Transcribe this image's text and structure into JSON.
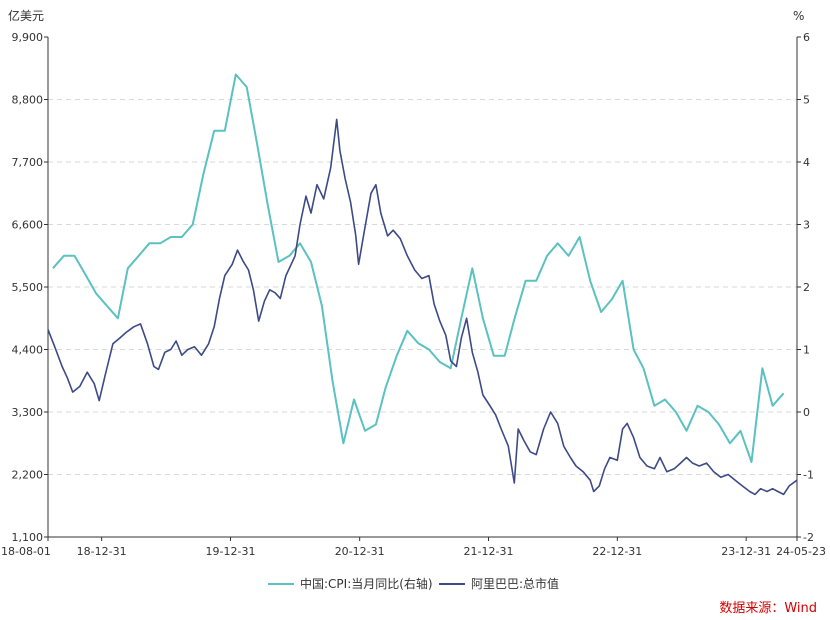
{
  "chart_data": {
    "type": "line",
    "left_axis": {
      "unit_label": "亿美元",
      "ticks": [
        "9,900",
        "8,800",
        "7,700",
        "6,600",
        "5,500",
        "4,400",
        "3,300",
        "2,200",
        "1,100"
      ],
      "range": [
        1100,
        9900
      ]
    },
    "right_axis": {
      "unit_label": "%",
      "ticks": [
        "6",
        "5",
        "4",
        "3",
        "2",
        "1",
        "0",
        "-1",
        "-2"
      ],
      "range": [
        -2,
        6
      ]
    },
    "x_axis": {
      "ticks": [
        "18-08-01",
        "18-12-31",
        "19-12-31",
        "20-12-31",
        "21-12-31",
        "22-12-31",
        "23-12-31",
        "24-05-23"
      ],
      "range": [
        "2018-08-01",
        "2024-05-23"
      ]
    },
    "grid": "dashed horizontal",
    "legend_position": "bottom",
    "series": [
      {
        "name": "中国:CPI:当月同比(右轴)",
        "axis": "right",
        "color": "#5bc1c1",
        "points": [
          [
            "2018-08",
            2.3
          ],
          [
            "2018-09",
            2.5
          ],
          [
            "2018-10",
            2.5
          ],
          [
            "2018-11",
            2.2
          ],
          [
            "2018-12",
            1.9
          ],
          [
            "2019-01",
            1.7
          ],
          [
            "2019-02",
            1.5
          ],
          [
            "2019-03",
            2.3
          ],
          [
            "2019-04",
            2.5
          ],
          [
            "2019-05",
            2.7
          ],
          [
            "2019-06",
            2.7
          ],
          [
            "2019-07",
            2.8
          ],
          [
            "2019-08",
            2.8
          ],
          [
            "2019-09",
            3.0
          ],
          [
            "2019-10",
            3.8
          ],
          [
            "2019-11",
            4.5
          ],
          [
            "2019-12",
            4.5
          ],
          [
            "2020-01",
            5.4
          ],
          [
            "2020-02",
            5.2
          ],
          [
            "2020-03",
            4.3
          ],
          [
            "2020-04",
            3.3
          ],
          [
            "2020-05",
            2.4
          ],
          [
            "2020-06",
            2.5
          ],
          [
            "2020-07",
            2.7
          ],
          [
            "2020-08",
            2.4
          ],
          [
            "2020-09",
            1.7
          ],
          [
            "2020-10",
            0.5
          ],
          [
            "2020-11",
            -0.5
          ],
          [
            "2020-12",
            0.2
          ],
          [
            "2021-01",
            -0.3
          ],
          [
            "2021-02",
            -0.2
          ],
          [
            "2021-03",
            0.4
          ],
          [
            "2021-04",
            0.9
          ],
          [
            "2021-05",
            1.3
          ],
          [
            "2021-06",
            1.1
          ],
          [
            "2021-07",
            1.0
          ],
          [
            "2021-08",
            0.8
          ],
          [
            "2021-09",
            0.7
          ],
          [
            "2021-10",
            1.5
          ],
          [
            "2021-11",
            2.3
          ],
          [
            "2021-12",
            1.5
          ],
          [
            "2022-01",
            0.9
          ],
          [
            "2022-02",
            0.9
          ],
          [
            "2022-03",
            1.5
          ],
          [
            "2022-04",
            2.1
          ],
          [
            "2022-05",
            2.1
          ],
          [
            "2022-06",
            2.5
          ],
          [
            "2022-07",
            2.7
          ],
          [
            "2022-08",
            2.5
          ],
          [
            "2022-09",
            2.8
          ],
          [
            "2022-10",
            2.1
          ],
          [
            "2022-11",
            1.6
          ],
          [
            "2022-12",
            1.8
          ],
          [
            "2023-01",
            2.1
          ],
          [
            "2023-02",
            1.0
          ],
          [
            "2023-03",
            0.7
          ],
          [
            "2023-04",
            0.1
          ],
          [
            "2023-05",
            0.2
          ],
          [
            "2023-06",
            0.0
          ],
          [
            "2023-07",
            -0.3
          ],
          [
            "2023-08",
            0.1
          ],
          [
            "2023-09",
            0.0
          ],
          [
            "2023-10",
            -0.2
          ],
          [
            "2023-11",
            -0.5
          ],
          [
            "2023-12",
            -0.3
          ],
          [
            "2024-01",
            -0.8
          ],
          [
            "2024-02",
            0.7
          ],
          [
            "2024-03",
            0.1
          ],
          [
            "2024-04",
            0.3
          ]
        ]
      },
      {
        "name": "阿里巴巴:总市值",
        "axis": "left",
        "color": "#3d4a86",
        "points": [
          [
            "2018-08-01",
            4750
          ],
          [
            "2018-08-20",
            4450
          ],
          [
            "2018-09-10",
            4100
          ],
          [
            "2018-09-25",
            3900
          ],
          [
            "2018-10-10",
            3650
          ],
          [
            "2018-10-30",
            3750
          ],
          [
            "2018-11-20",
            4000
          ],
          [
            "2018-12-10",
            3800
          ],
          [
            "2018-12-24",
            3500
          ],
          [
            "2019-01-10",
            3950
          ],
          [
            "2019-02-01",
            4500
          ],
          [
            "2019-02-20",
            4600
          ],
          [
            "2019-03-10",
            4700
          ],
          [
            "2019-04-01",
            4800
          ],
          [
            "2019-04-20",
            4850
          ],
          [
            "2019-05-10",
            4500
          ],
          [
            "2019-05-28",
            4100
          ],
          [
            "2019-06-10",
            4050
          ],
          [
            "2019-06-28",
            4350
          ],
          [
            "2019-07-15",
            4400
          ],
          [
            "2019-07-30",
            4550
          ],
          [
            "2019-08-15",
            4300
          ],
          [
            "2019-09-01",
            4400
          ],
          [
            "2019-09-20",
            4450
          ],
          [
            "2019-10-10",
            4300
          ],
          [
            "2019-10-30",
            4500
          ],
          [
            "2019-11-15",
            4800
          ],
          [
            "2019-11-30",
            5300
          ],
          [
            "2019-12-15",
            5700
          ],
          [
            "2020-01-05",
            5900
          ],
          [
            "2020-01-20",
            6150
          ],
          [
            "2020-02-05",
            5950
          ],
          [
            "2020-02-20",
            5800
          ],
          [
            "2020-03-05",
            5450
          ],
          [
            "2020-03-20",
            4900
          ],
          [
            "2020-04-05",
            5250
          ],
          [
            "2020-04-20",
            5450
          ],
          [
            "2020-05-05",
            5400
          ],
          [
            "2020-05-20",
            5300
          ],
          [
            "2020-06-05",
            5700
          ],
          [
            "2020-06-20",
            5900
          ],
          [
            "2020-07-01",
            6050
          ],
          [
            "2020-07-15",
            6600
          ],
          [
            "2020-08-01",
            7100
          ],
          [
            "2020-08-15",
            6800
          ],
          [
            "2020-09-01",
            7300
          ],
          [
            "2020-09-20",
            7050
          ],
          [
            "2020-10-10",
            7600
          ],
          [
            "2020-10-27",
            8450
          ],
          [
            "2020-11-05",
            7900
          ],
          [
            "2020-11-20",
            7400
          ],
          [
            "2020-12-05",
            7000
          ],
          [
            "2020-12-20",
            6400
          ],
          [
            "2020-12-28",
            5900
          ],
          [
            "2021-01-15",
            6550
          ],
          [
            "2021-02-01",
            7150
          ],
          [
            "2021-02-15",
            7300
          ],
          [
            "2021-03-01",
            6800
          ],
          [
            "2021-03-20",
            6400
          ],
          [
            "2021-04-05",
            6500
          ],
          [
            "2021-04-25",
            6350
          ],
          [
            "2021-05-15",
            6050
          ],
          [
            "2021-06-05",
            5800
          ],
          [
            "2021-06-25",
            5650
          ],
          [
            "2021-07-15",
            5700
          ],
          [
            "2021-07-30",
            5200
          ],
          [
            "2021-08-15",
            4900
          ],
          [
            "2021-09-01",
            4650
          ],
          [
            "2021-09-15",
            4200
          ],
          [
            "2021-10-01",
            4100
          ],
          [
            "2021-10-15",
            4600
          ],
          [
            "2021-10-30",
            4950
          ],
          [
            "2021-11-15",
            4350
          ],
          [
            "2021-12-01",
            4000
          ],
          [
            "2021-12-15",
            3600
          ],
          [
            "2021-12-31",
            3450
          ],
          [
            "2022-01-20",
            3250
          ],
          [
            "2022-02-05",
            3000
          ],
          [
            "2022-02-25",
            2700
          ],
          [
            "2022-03-14",
            2050
          ],
          [
            "2022-03-25",
            3000
          ],
          [
            "2022-04-10",
            2800
          ],
          [
            "2022-04-28",
            2600
          ],
          [
            "2022-05-15",
            2550
          ],
          [
            "2022-06-05",
            3000
          ],
          [
            "2022-06-25",
            3300
          ],
          [
            "2022-07-15",
            3100
          ],
          [
            "2022-08-01",
            2700
          ],
          [
            "2022-08-20",
            2500
          ],
          [
            "2022-09-05",
            2350
          ],
          [
            "2022-09-25",
            2250
          ],
          [
            "2022-10-15",
            2100
          ],
          [
            "2022-10-25",
            1900
          ],
          [
            "2022-11-10",
            2000
          ],
          [
            "2022-11-25",
            2300
          ],
          [
            "2022-12-10",
            2500
          ],
          [
            "2022-12-31",
            2450
          ],
          [
            "2023-01-15",
            3000
          ],
          [
            "2023-01-28",
            3100
          ],
          [
            "2023-02-15",
            2850
          ],
          [
            "2023-03-05",
            2500
          ],
          [
            "2023-03-25",
            2350
          ],
          [
            "2023-04-15",
            2300
          ],
          [
            "2023-05-01",
            2500
          ],
          [
            "2023-05-20",
            2250
          ],
          [
            "2023-06-10",
            2300
          ],
          [
            "2023-06-28",
            2400
          ],
          [
            "2023-07-15",
            2500
          ],
          [
            "2023-08-01",
            2400
          ],
          [
            "2023-08-20",
            2350
          ],
          [
            "2023-09-10",
            2400
          ],
          [
            "2023-09-30",
            2250
          ],
          [
            "2023-10-20",
            2150
          ],
          [
            "2023-11-10",
            2200
          ],
          [
            "2023-11-30",
            2100
          ],
          [
            "2023-12-20",
            2000
          ],
          [
            "2024-01-10",
            1900
          ],
          [
            "2024-01-25",
            1850
          ],
          [
            "2024-02-10",
            1950
          ],
          [
            "2024-02-28",
            1900
          ],
          [
            "2024-03-15",
            1950
          ],
          [
            "2024-03-30",
            1900
          ],
          [
            "2024-04-15",
            1850
          ],
          [
            "2024-05-01",
            2000
          ],
          [
            "2024-05-23",
            2100
          ]
        ]
      }
    ],
    "source": "数据来源：Wind"
  }
}
